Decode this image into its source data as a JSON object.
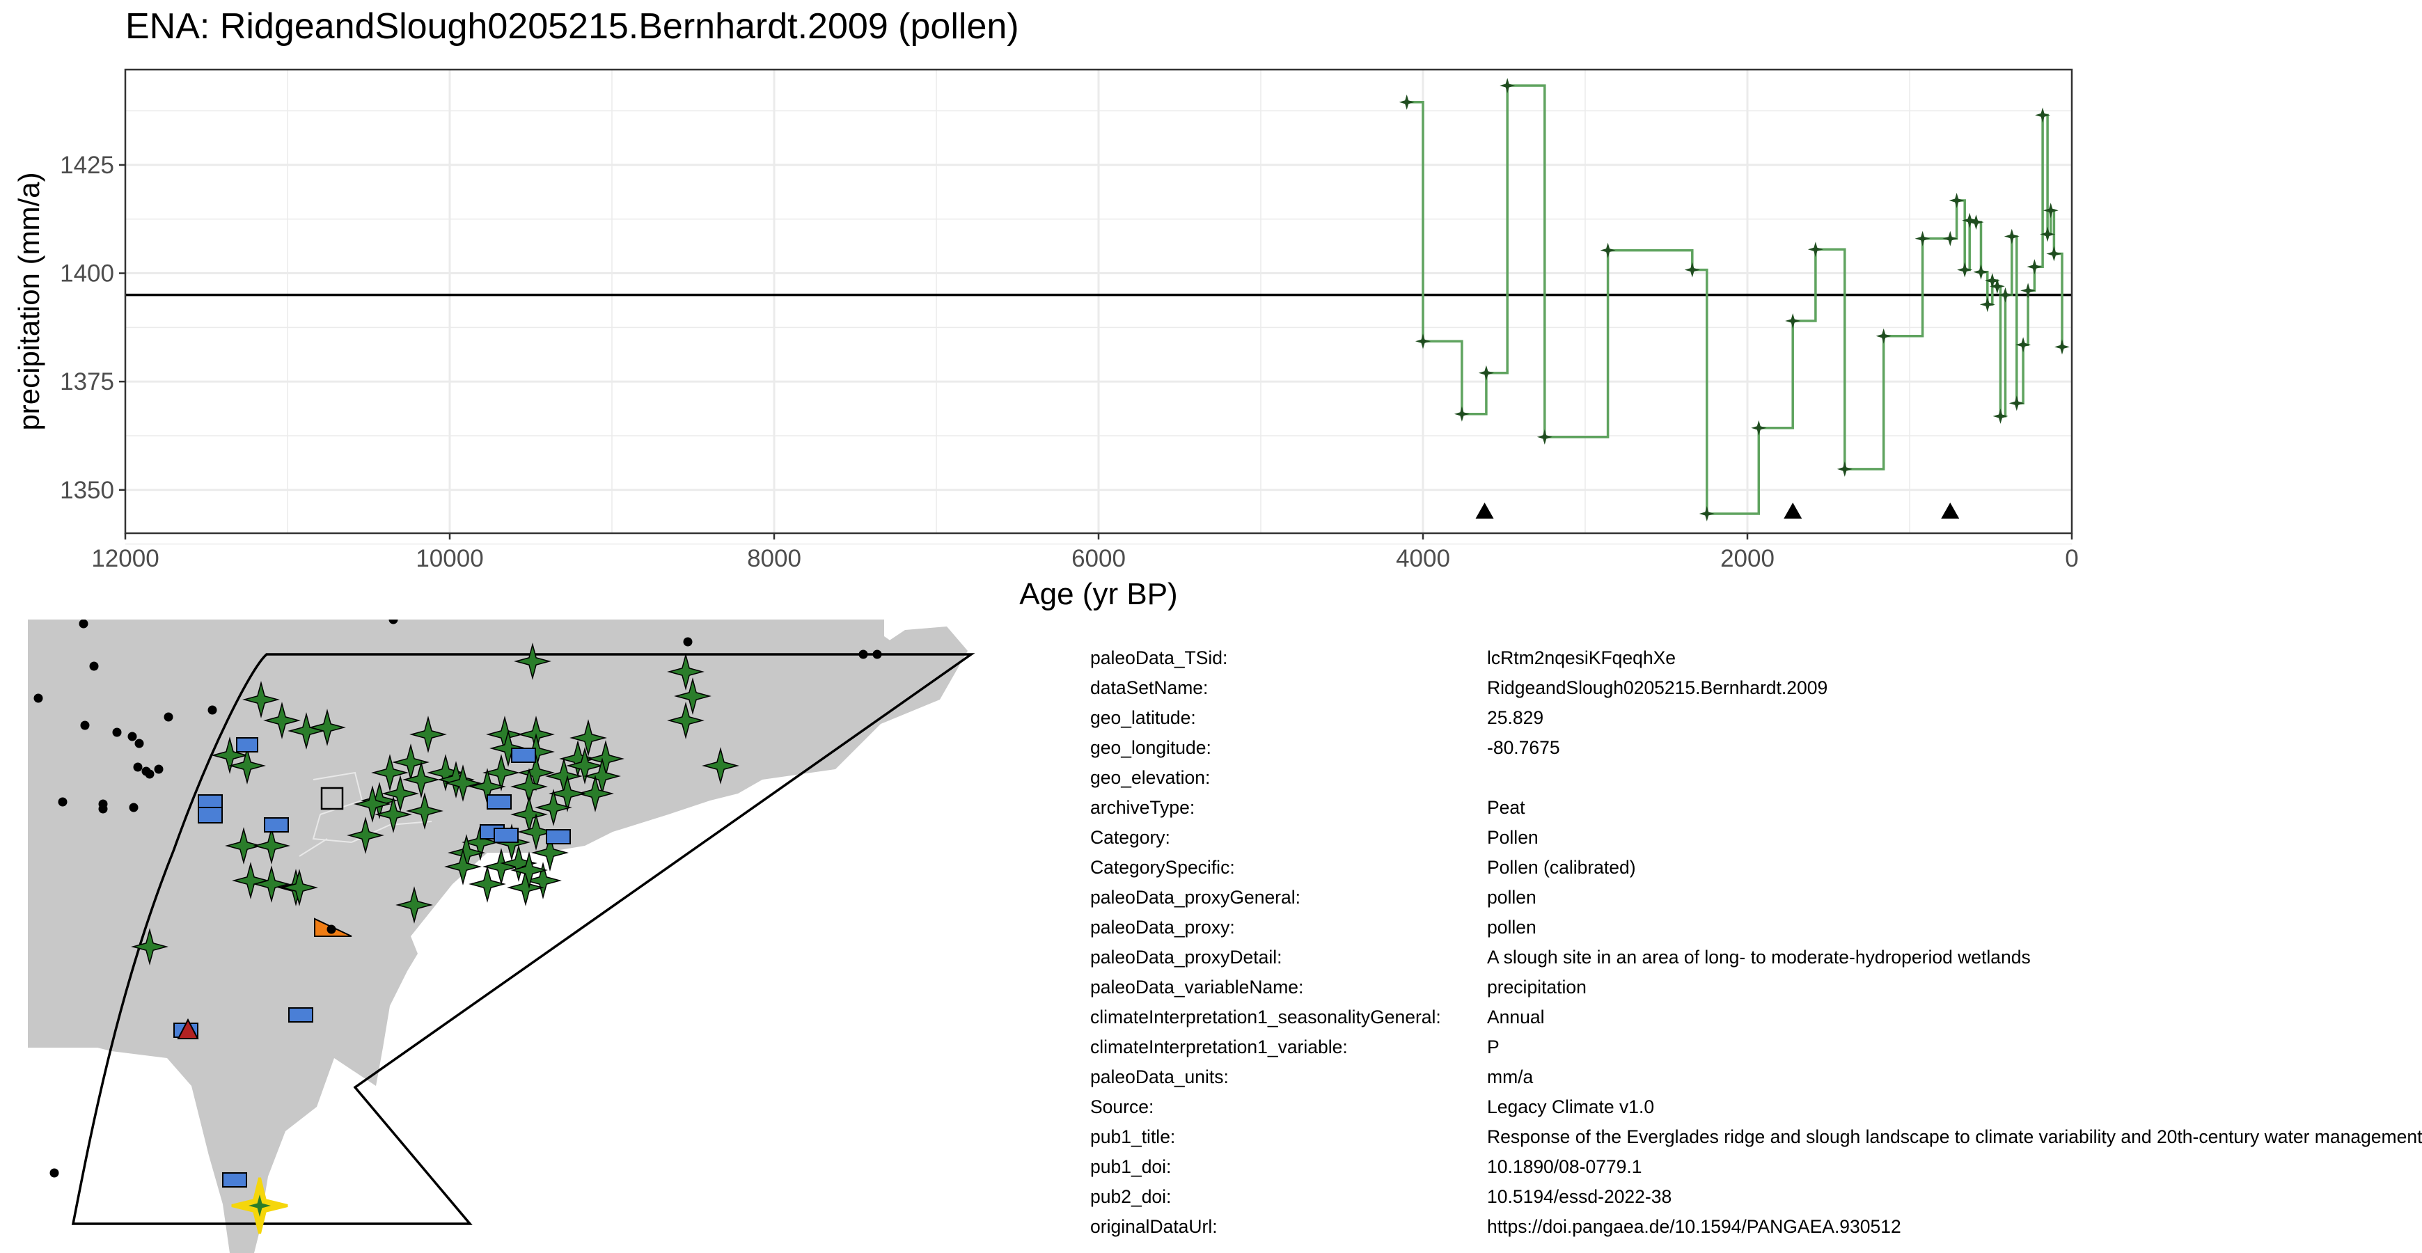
{
  "title": "ENA: RidgeandSlough0205215.Bernhardt.2009 (pollen)",
  "chart_data": {
    "type": "line",
    "title": "ENA: RidgeandSlough0205215.Bernhardt.2009 (pollen)",
    "xlabel": "Age (yr BP)",
    "ylabel": "precipitation (mm/a)",
    "x_reversed": true,
    "xlim": [
      12000,
      0
    ],
    "ylim": [
      1340,
      1447
    ],
    "x_ticks": [
      12000,
      10000,
      8000,
      6000,
      4000,
      2000,
      0
    ],
    "y_ticks": [
      1350,
      1375,
      1400,
      1425
    ],
    "grid": true,
    "reference_line_y": 1395,
    "line_style": "step",
    "series": [
      {
        "color": "#5fa35f",
        "marker_color": "#1f4d1f",
        "points": [
          [
            4100,
            1439.5
          ],
          [
            4000,
            1384.3
          ],
          [
            3760,
            1367.5
          ],
          [
            3610,
            1377.0
          ],
          [
            3480,
            1443.3
          ],
          [
            3250,
            1362.2
          ],
          [
            2860,
            1405.3
          ],
          [
            2340,
            1400.8
          ],
          [
            2250,
            1344.5
          ],
          [
            1930,
            1364.3
          ],
          [
            1720,
            1389.0
          ],
          [
            1580,
            1405.5
          ],
          [
            1400,
            1354.8
          ],
          [
            1160,
            1385.5
          ],
          [
            920,
            1408.0
          ],
          [
            750,
            1408.0
          ],
          [
            710,
            1416.8
          ],
          [
            660,
            1400.8
          ],
          [
            630,
            1412.2
          ],
          [
            590,
            1411.8
          ],
          [
            560,
            1400.3
          ],
          [
            520,
            1392.8
          ],
          [
            490,
            1398.3
          ],
          [
            460,
            1397.0
          ],
          [
            440,
            1367.0
          ],
          [
            410,
            1395.0
          ],
          [
            370,
            1408.5
          ],
          [
            340,
            1370.0
          ],
          [
            300,
            1383.5
          ],
          [
            270,
            1396.0
          ],
          [
            230,
            1401.5
          ],
          [
            180,
            1436.5
          ],
          [
            150,
            1409.0
          ],
          [
            130,
            1414.5
          ],
          [
            110,
            1404.5
          ],
          [
            60,
            1383.0
          ]
        ]
      }
    ],
    "age_markers": [
      3620,
      1720,
      750
    ]
  },
  "map": {
    "land_color": "#c8c8c8",
    "region_outline": "black",
    "highlight_color": "#f5d60b"
  },
  "metadata": [
    {
      "key": "paleoData_TSid:",
      "value": "lcRtm2nqesiKFqeqhXe"
    },
    {
      "key": "dataSetName:",
      "value": "RidgeandSlough0205215.Bernhardt.2009"
    },
    {
      "key": "geo_latitude:",
      "value": "25.829"
    },
    {
      "key": "geo_longitude:",
      "value": "-80.7675"
    },
    {
      "key": "geo_elevation:",
      "value": ""
    },
    {
      "key": "archiveType:",
      "value": "Peat"
    },
    {
      "key": "Category:",
      "value": "Pollen"
    },
    {
      "key": "CategorySpecific:",
      "value": "Pollen (calibrated)"
    },
    {
      "key": "paleoData_proxyGeneral:",
      "value": "pollen"
    },
    {
      "key": "paleoData_proxy:",
      "value": "pollen"
    },
    {
      "key": "paleoData_proxyDetail:",
      "value": "A slough site in an area of long- to moderate-hydroperiod wetlands"
    },
    {
      "key": "paleoData_variableName:",
      "value": "precipitation"
    },
    {
      "key": "climateInterpretation1_seasonalityGeneral:",
      "value": "Annual"
    },
    {
      "key": "climateInterpretation1_variable:",
      "value": "P"
    },
    {
      "key": "paleoData_units:",
      "value": "mm/a"
    },
    {
      "key": "Source:",
      "value": "Legacy Climate v1.0"
    },
    {
      "key": "pub1_title:",
      "value": "Response of the Everglades ridge and slough landscape to climate variability and 20th-century water management"
    },
    {
      "key": "pub1_doi:",
      "value": "10.1890/08-0779.1"
    },
    {
      "key": "pub2_doi:",
      "value": "10.5194/essd-2022-38"
    },
    {
      "key": "originalDataUrl:",
      "value": "https://doi.pangaea.de/10.1594/PANGAEA.930512"
    }
  ]
}
